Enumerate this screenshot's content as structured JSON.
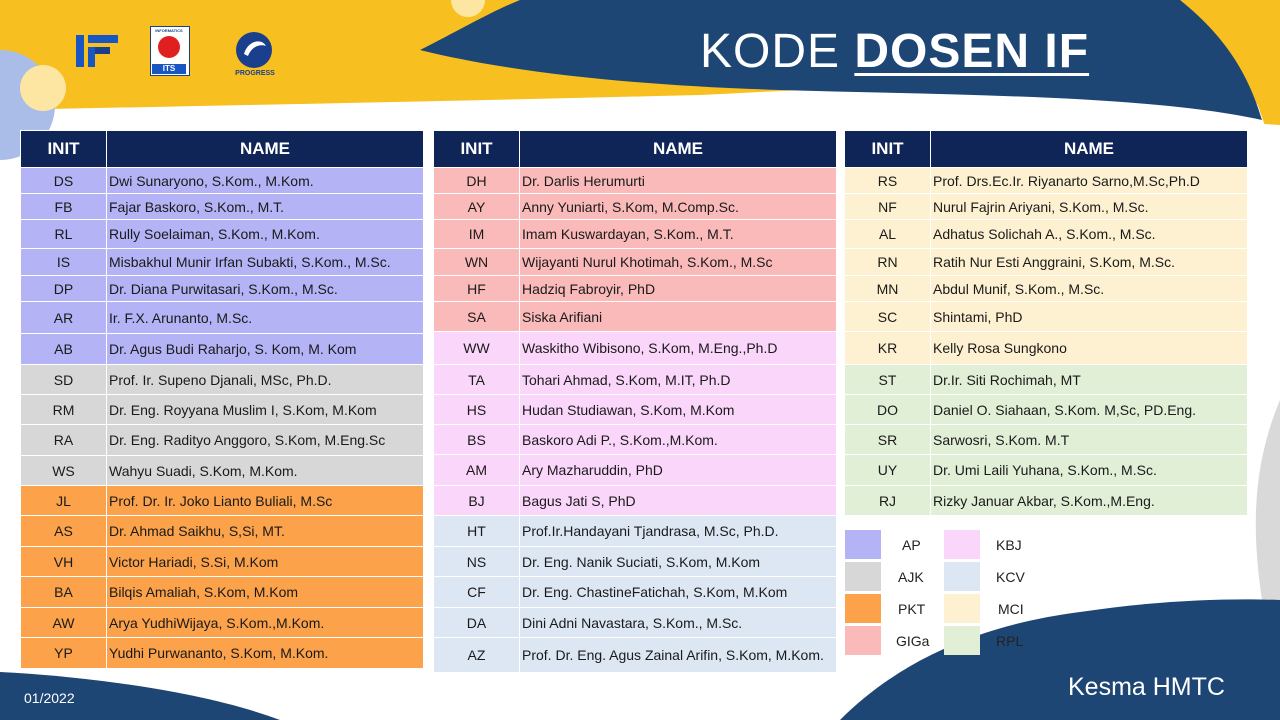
{
  "header": {
    "title_light": "KODE",
    "title_bold": "DOSEN IF",
    "logos": {
      "if_logo": "IF",
      "its_top": "INFORMATICS",
      "its_bottom": "ITS",
      "progress": "PROGRESS"
    }
  },
  "table_headers": {
    "init": "INIT",
    "name": "NAME"
  },
  "colors": {
    "AP": "#b3b3f5",
    "AJK": "#d7d7d7",
    "PKT": "#fba24a",
    "GIGa": "#fbbaba",
    "KBJ": "#fbd6fb",
    "KCV": "#dce7f3",
    "MCI": "#fdf1d1",
    "RPL": "#e1efd7",
    "header": "#0f2557"
  },
  "columns": [
    {
      "rows": [
        {
          "init": "DS",
          "name": "Dwi Sunaryono, S.Kom., M.Kom.",
          "group": "ap"
        },
        {
          "init": "FB",
          "name": "Fajar Baskoro, S.Kom., M.T.",
          "group": "ap"
        },
        {
          "init": "RL",
          "name": "Rully Soelaiman, S.Kom., M.Kom.",
          "group": "ap"
        },
        {
          "init": "IS",
          "name": "Misbakhul Munir Irfan Subakti, S.Kom., M.Sc.",
          "group": "ap"
        },
        {
          "init": "DP",
          "name": "Dr. Diana Purwitasari, S.Kom., M.Sc.",
          "group": "ap"
        },
        {
          "init": "AR",
          "name": "Ir. F.X. Arunanto, M.Sc.",
          "group": "ap"
        },
        {
          "init": "AB",
          "name": "Dr. Agus Budi Raharjo, S. Kom, M. Kom",
          "group": "ap"
        },
        {
          "init": "SD",
          "name": "Prof. Ir. Supeno Djanali, MSc, Ph.D.",
          "group": "ajk"
        },
        {
          "init": "RM",
          "name": "Dr. Eng. Royyana Muslim I, S.Kom, M.Kom",
          "group": "ajk"
        },
        {
          "init": "RA",
          "name": "Dr. Eng. Radityo Anggoro, S.Kom, M.Eng.Sc",
          "group": "ajk"
        },
        {
          "init": "WS",
          "name": "Wahyu Suadi, S.Kom, M.Kom.",
          "group": "ajk"
        },
        {
          "init": "JL",
          "name": "Prof. Dr. Ir. Joko Lianto Buliali, M.Sc",
          "group": "pkt"
        },
        {
          "init": "AS",
          "name": "Dr. Ahmad Saikhu, S,Si, MT.",
          "group": "pkt"
        },
        {
          "init": "VH",
          "name": "Victor Hariadi, S.Si, M.Kom",
          "group": "pkt"
        },
        {
          "init": "BA",
          "name": "Bilqis Amaliah, S.Kom, M.Kom",
          "group": "pkt"
        },
        {
          "init": "AW",
          "name": "Arya YudhiWijaya, S.Kom.,M.Kom.",
          "group": "pkt"
        },
        {
          "init": "YP",
          "name": "Yudhi Purwananto, S.Kom, M.Kom.",
          "group": "pkt"
        }
      ]
    },
    {
      "rows": [
        {
          "init": "DH",
          "name": "Dr. Darlis Herumurti",
          "group": "gig"
        },
        {
          "init": "AY",
          "name": "Anny Yuniarti, S.Kom, M.Comp.Sc.",
          "group": "gig"
        },
        {
          "init": "IM",
          "name": "Imam Kuswardayan, S.Kom., M.T.",
          "group": "gig"
        },
        {
          "init": "WN",
          "name": "Wijayanti Nurul Khotimah, S.Kom., M.Sc",
          "group": "gig"
        },
        {
          "init": "HF",
          "name": "Hadziq Fabroyir, PhD",
          "group": "gig"
        },
        {
          "init": "SA",
          "name": "Siska Arifiani",
          "group": "gig"
        },
        {
          "init": "WW",
          "name": "Waskitho Wibisono, S.Kom, M.Eng.,Ph.D",
          "group": "kbj"
        },
        {
          "init": "TA",
          "name": "Tohari Ahmad, S.Kom, M.IT, Ph.D",
          "group": "kbj"
        },
        {
          "init": "HS",
          "name": "Hudan Studiawan, S.Kom, M.Kom",
          "group": "kbj"
        },
        {
          "init": "BS",
          "name": "Baskoro Adi P., S.Kom.,M.Kom.",
          "group": "kbj"
        },
        {
          "init": "AM",
          "name": "Ary Mazharuddin, PhD",
          "group": "kbj"
        },
        {
          "init": "BJ",
          "name": "Bagus Jati S, PhD",
          "group": "kbj"
        },
        {
          "init": "HT",
          "name": "Prof.Ir.Handayani Tjandrasa, M.Sc, Ph.D.",
          "group": "kcv"
        },
        {
          "init": "NS",
          "name": "Dr. Eng. Nanik Suciati, S.Kom, M.Kom",
          "group": "kcv"
        },
        {
          "init": "CF",
          "name": "Dr. Eng. ChastineFatichah, S.Kom, M.Kom",
          "group": "kcv"
        },
        {
          "init": "DA",
          "name": "Dini Adni Navastara, S.Kom., M.Sc.",
          "group": "kcv"
        },
        {
          "init": "AZ",
          "name": "Prof. Dr. Eng. Agus Zainal Arifin, S.Kom, M.Kom.",
          "group": "kcv"
        }
      ]
    },
    {
      "rows": [
        {
          "init": "RS",
          "name": "Prof. Drs.Ec.Ir. Riyanarto Sarno,M.Sc,Ph.D",
          "group": "mci"
        },
        {
          "init": "NF",
          "name": "Nurul Fajrin Ariyani, S.Kom., M.Sc.",
          "group": "mci"
        },
        {
          "init": "AL",
          "name": "Adhatus Solichah A., S.Kom., M.Sc.",
          "group": "mci"
        },
        {
          "init": "RN",
          "name": "Ratih Nur Esti Anggraini, S.Kom, M.Sc.",
          "group": "mci"
        },
        {
          "init": "MN",
          "name": "Abdul Munif, S.Kom., M.Sc.",
          "group": "mci"
        },
        {
          "init": "SC",
          "name": "Shintami, PhD",
          "group": "mci"
        },
        {
          "init": "KR",
          "name": "Kelly Rosa Sungkono",
          "group": "mci"
        },
        {
          "init": "ST",
          "name": "Dr.Ir. Siti Rochimah, MT",
          "group": "rpl"
        },
        {
          "init": "DO",
          "name": "Daniel O. Siahaan, S.Kom. M,Sc, PD.Eng.",
          "group": "rpl"
        },
        {
          "init": "SR",
          "name": "Sarwosri, S.Kom. M.T",
          "group": "rpl"
        },
        {
          "init": "UY",
          "name": "Dr. Umi Laili Yuhana, S.Kom., M.Sc.",
          "group": "rpl"
        },
        {
          "init": "RJ",
          "name": "Rizky Januar Akbar, S.Kom.,M.Eng.",
          "group": "rpl"
        }
      ]
    }
  ],
  "legend": [
    {
      "label": "AP",
      "group": "ap"
    },
    {
      "label": "AJK",
      "group": "ajk"
    },
    {
      "label": "PKT",
      "group": "pkt"
    },
    {
      "label": "GIGa",
      "group": "gig"
    },
    {
      "label": "KBJ",
      "group": "kbj"
    },
    {
      "label": "KCV",
      "group": "kcv"
    },
    {
      "label": "MCI",
      "group": "mci"
    },
    {
      "label": "RPL",
      "group": "rpl"
    }
  ],
  "footer": {
    "date": "01/2022",
    "credit": "Kesma HMTC"
  }
}
